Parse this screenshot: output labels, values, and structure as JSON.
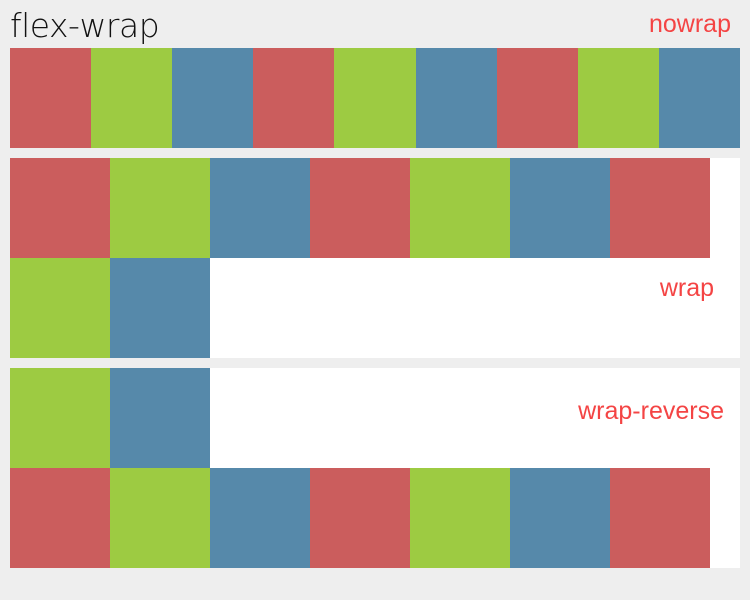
{
  "title": "flex-wrap",
  "labels": {
    "nowrap": "nowrap",
    "wrap": "wrap",
    "wrap_reverse": "wrap-reverse"
  },
  "colors": {
    "red": "#cb5d5d",
    "green": "#9dcb42",
    "blue": "#5689aa",
    "label": "#f44444"
  },
  "items": [
    "red",
    "green",
    "blue",
    "red",
    "green",
    "blue",
    "red",
    "green",
    "blue"
  ]
}
